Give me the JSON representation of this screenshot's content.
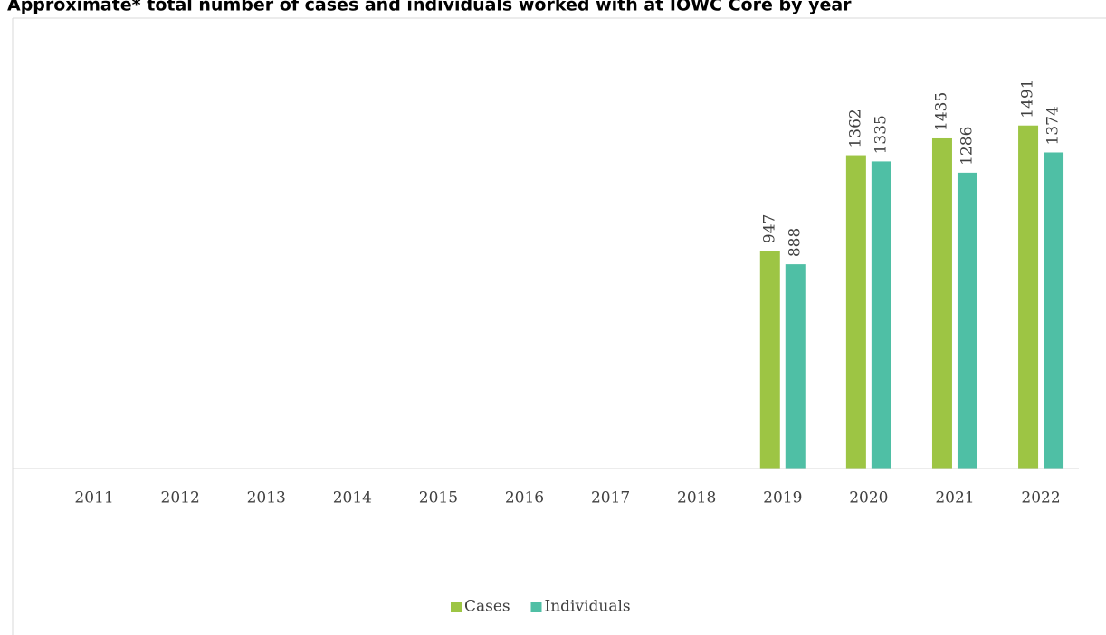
{
  "chart_data": {
    "type": "bar",
    "title": "Approximate* total number of cases and individuals worked with at IOWC Core by year",
    "categories": [
      "2011",
      "2012",
      "2013",
      "2014",
      "2015",
      "2016",
      "2017",
      "2018",
      "2019",
      "2020",
      "2021",
      "2022"
    ],
    "series": [
      {
        "name": "Cases",
        "color": "#9dc544",
        "values": [
          null,
          null,
          null,
          null,
          null,
          null,
          null,
          null,
          947,
          1362,
          1435,
          1491
        ]
      },
      {
        "name": "Individuals",
        "color": "#4fbfa5",
        "values": [
          null,
          null,
          null,
          null,
          null,
          null,
          null,
          null,
          888,
          1335,
          1286,
          1374
        ]
      }
    ],
    "ylim": [
      0,
      1600
    ],
    "legend": "bottom"
  }
}
